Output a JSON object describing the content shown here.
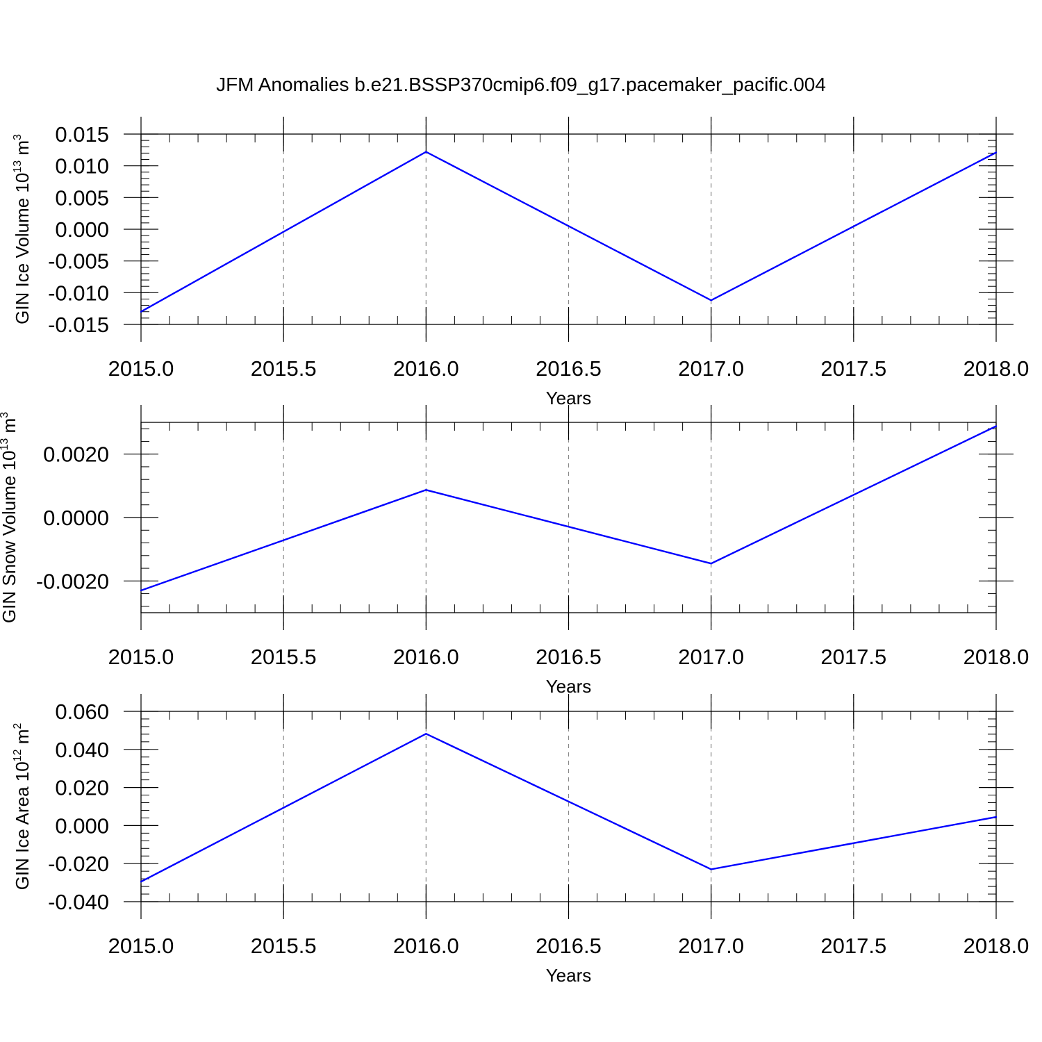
{
  "title": "JFM Anomalies b.e21.BSSP370cmip6.f09_g17.pacemaker_pacific.004",
  "colors": {
    "line": "#0000ff",
    "axis": "#000000",
    "grid": "#888888"
  },
  "chart_data": [
    {
      "type": "line",
      "xlabel": "Years",
      "ylabel": {
        "text": "GIN Ice Volume 10",
        "exp": "13",
        "unit": " m",
        "unit_exp": "3"
      },
      "xlim": [
        2015.0,
        2018.0
      ],
      "ylim": [
        -0.015,
        0.015
      ],
      "xticks": [
        2015.0,
        2015.5,
        2016.0,
        2016.5,
        2017.0,
        2017.5,
        2018.0
      ],
      "xtick_labels": [
        "2015.0",
        "2015.5",
        "2016.0",
        "2016.5",
        "2017.0",
        "2017.5",
        "2018.0"
      ],
      "yticks": [
        -0.015,
        -0.01,
        -0.005,
        0.0,
        0.005,
        0.01,
        0.015
      ],
      "ytick_labels": [
        "-0.015",
        "-0.010",
        "-0.005",
        "0.000",
        "0.005",
        "0.010",
        "0.015"
      ],
      "grid": "vertical dashed",
      "x": [
        2015.0,
        2016.0,
        2017.0,
        2018.0
      ],
      "y": [
        -0.013,
        0.0122,
        -0.0112,
        0.0121
      ]
    },
    {
      "type": "line",
      "xlabel": "Years",
      "ylabel": {
        "text": "GIN Snow Volume 10",
        "exp": "13",
        "unit": " m",
        "unit_exp": "3"
      },
      "xlim": [
        2015.0,
        2018.0
      ],
      "ylim": [
        -0.003,
        0.003
      ],
      "xticks": [
        2015.0,
        2015.5,
        2016.0,
        2016.5,
        2017.0,
        2017.5,
        2018.0
      ],
      "xtick_labels": [
        "2015.0",
        "2015.5",
        "2016.0",
        "2016.5",
        "2017.0",
        "2017.5",
        "2018.0"
      ],
      "yticks": [
        -0.002,
        0.0,
        0.002
      ],
      "ytick_labels": [
        "-0.0020",
        "0.0000",
        "0.0020"
      ],
      "grid": "vertical dashed",
      "x": [
        2015.0,
        2016.0,
        2017.0,
        2018.0
      ],
      "y": [
        -0.0023,
        0.00087,
        -0.00145,
        0.00288
      ]
    },
    {
      "type": "line",
      "xlabel": "Years",
      "ylabel": {
        "text": "GIN Ice Area 10",
        "exp": "12",
        "unit": " m",
        "unit_exp": "2"
      },
      "xlim": [
        2015.0,
        2018.0
      ],
      "ylim": [
        -0.04,
        0.06
      ],
      "xticks": [
        2015.0,
        2015.5,
        2016.0,
        2016.5,
        2017.0,
        2017.5,
        2018.0
      ],
      "xtick_labels": [
        "2015.0",
        "2015.5",
        "2016.0",
        "2016.5",
        "2017.0",
        "2017.5",
        "2018.0"
      ],
      "yticks": [
        -0.04,
        -0.02,
        0.0,
        0.02,
        0.04,
        0.06
      ],
      "ytick_labels": [
        "-0.040",
        "-0.020",
        "0.000",
        "0.020",
        "0.040",
        "0.060"
      ],
      "grid": "vertical dashed",
      "x": [
        2015.0,
        2016.0,
        2017.0,
        2018.0
      ],
      "y": [
        -0.0295,
        0.0482,
        -0.023,
        0.0045
      ]
    }
  ]
}
